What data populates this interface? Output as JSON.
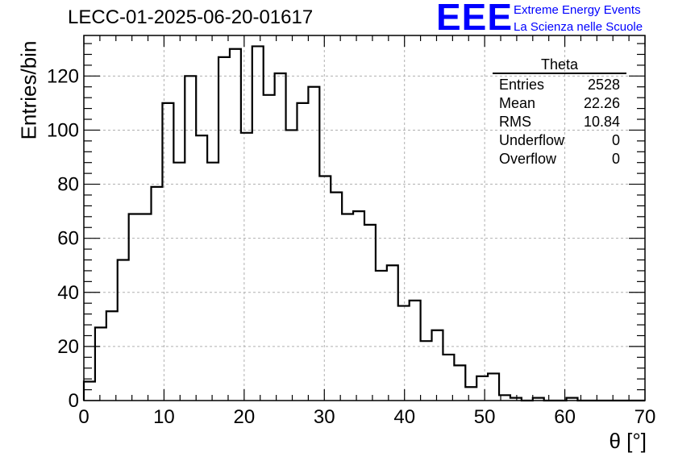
{
  "header": {
    "title": "LECC-01-2025-06-20-01617",
    "logo_text": "EEE",
    "logo_line1": "Extreme Energy Events",
    "logo_line2": "La Scienza nelle Scuole"
  },
  "stats": {
    "name": "Theta",
    "rows": [
      {
        "label": "Entries",
        "value": "2528"
      },
      {
        "label": "Mean",
        "value": "22.26"
      },
      {
        "label": "RMS",
        "value": "10.84"
      },
      {
        "label": "Underflow",
        "value": "0"
      },
      {
        "label": "Overflow",
        "value": "0"
      }
    ]
  },
  "colors": {
    "line": "#000000",
    "grid": "#b0b0b0",
    "logo": "#0000ff"
  },
  "chart_data": {
    "type": "bar",
    "histogram": true,
    "title": "LECC-01-2025-06-20-01617",
    "xlabel": "θ [°]",
    "ylabel": "Entries/bin",
    "xlim": [
      0,
      70
    ],
    "ylim": [
      0,
      135
    ],
    "bin_width": 1.4,
    "bin_start": 0,
    "xticks": [
      0,
      10,
      20,
      30,
      40,
      50,
      60,
      70
    ],
    "yticks": [
      0,
      20,
      40,
      60,
      80,
      100,
      120
    ],
    "grid": true,
    "values": [
      7,
      27,
      33,
      52,
      69,
      69,
      79,
      110,
      88,
      120,
      98,
      88,
      127,
      130,
      99,
      131,
      113,
      121,
      100,
      110,
      116,
      83,
      77,
      69,
      70,
      65,
      48,
      50,
      35,
      37,
      22,
      26,
      17,
      13,
      5,
      9,
      10,
      2,
      1,
      0,
      1,
      0,
      0,
      1,
      0,
      0,
      0,
      0,
      0,
      0
    ]
  }
}
